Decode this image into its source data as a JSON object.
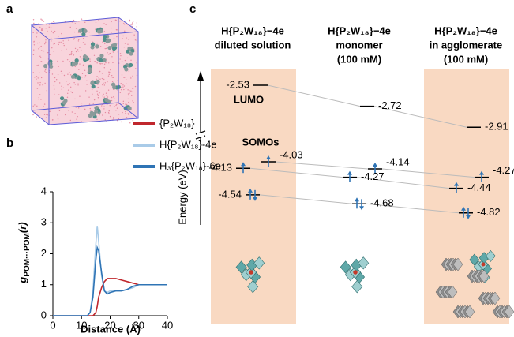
{
  "panel_labels": [
    "a",
    "b",
    "c"
  ],
  "chart_data": {
    "type": "line",
    "x": [
      0,
      10,
      12,
      13,
      14,
      15,
      15.5,
      16,
      17,
      18,
      19,
      20,
      22,
      24,
      26,
      28,
      30,
      32,
      35,
      38,
      40
    ],
    "series": [
      {
        "name": "{P₂W₁₈}",
        "color": "#c0272d",
        "values": [
          0,
          0,
          0,
          0,
          0,
          0.1,
          0.3,
          0.6,
          0.9,
          1.1,
          1.2,
          1.2,
          1.2,
          1.15,
          1.1,
          1.05,
          1.0,
          1.0,
          1.0,
          1.0,
          1.0
        ]
      },
      {
        "name": "H{P₂W₁₈}-4e",
        "color": "#a9cbe8",
        "values": [
          0,
          0,
          0,
          0.1,
          0.8,
          2.3,
          2.9,
          2.4,
          1.3,
          0.8,
          0.75,
          0.8,
          0.8,
          0.8,
          0.85,
          0.9,
          1.0,
          1.0,
          1.0,
          1.0,
          1.0
        ]
      },
      {
        "name": "H₃{P₂W₁₈}-6e",
        "color": "#2f74b5",
        "values": [
          0,
          0,
          0,
          0.1,
          0.6,
          1.8,
          2.2,
          2.1,
          1.4,
          0.8,
          0.7,
          0.75,
          0.8,
          0.8,
          0.85,
          0.95,
          1.0,
          1.0,
          1.0,
          1.0,
          1.0
        ]
      }
    ],
    "xlim": [
      0,
      40
    ],
    "ylim": [
      0,
      4
    ],
    "xticks": [
      0,
      10,
      20,
      30,
      40
    ],
    "yticks": [
      0,
      1,
      2,
      3,
      4
    ],
    "x_label": "Distance (Å)",
    "y_label": {
      "main": "g",
      "sub": "POM···POM",
      "tail": "(r)"
    }
  },
  "energy_diagram": {
    "y_label": "Energy (eV)",
    "lumo_label": "LUMO",
    "somo_label": "SOMOs",
    "columns": [
      {
        "lines": [
          "H{P₂W₁₈}−4e",
          "diluted solution"
        ],
        "levels": [
          -2.53,
          -4.03,
          -4.13,
          -4.54
        ]
      },
      {
        "lines": [
          "H{P₂W₁₈}−4e",
          "monomer",
          "(100 mM)"
        ],
        "levels": [
          -2.72,
          -4.14,
          -4.27,
          -4.68
        ]
      },
      {
        "lines": [
          "H{P₂W₁₈}−4e",
          "in agglomerate",
          "(100 mM)"
        ],
        "levels": [
          -2.91,
          -4.27,
          -4.44,
          -4.82
        ]
      }
    ]
  }
}
